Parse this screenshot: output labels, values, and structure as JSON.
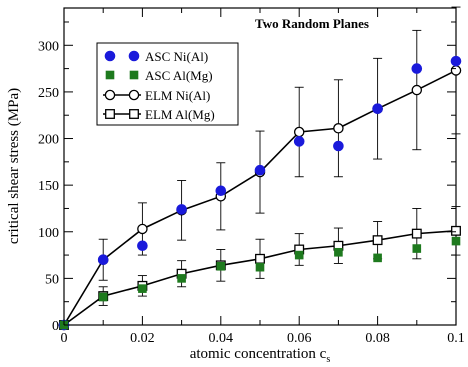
{
  "chart_data": {
    "type": "scatter",
    "title": "Two Random Planes",
    "xlabel_main": "atomic concentration c",
    "xlabel_sub": "s",
    "ylabel": "critical shear stress (MPa)",
    "xlim": [
      0,
      0.1
    ],
    "ylim": [
      0,
      340
    ],
    "x_ticks": [
      0,
      0.02,
      0.04,
      0.06,
      0.08,
      0.1
    ],
    "x_tick_labels": [
      "0",
      "0.02",
      "0.04",
      "0.06",
      "0.08",
      "0.1"
    ],
    "y_ticks": [
      0,
      50,
      100,
      150,
      200,
      250,
      300
    ],
    "y_tick_labels": [
      "0",
      "50",
      "100",
      "150",
      "200",
      "250",
      "300"
    ],
    "legend_position": "top-left",
    "series": [
      {
        "name": "ASC Ni(Al)",
        "marker": "filled-circle",
        "line": false,
        "color": "#1a1adb",
        "x": [
          0,
          0.01,
          0.02,
          0.03,
          0.04,
          0.05,
          0.06,
          0.07,
          0.08,
          0.09,
          0.1
        ],
        "y": [
          0,
          70,
          85,
          124,
          144,
          166,
          197,
          192,
          232,
          275,
          283
        ]
      },
      {
        "name": "ASC Al(Mg)",
        "marker": "filled-square",
        "line": false,
        "color": "#1e7a1e",
        "x": [
          0,
          0.01,
          0.02,
          0.03,
          0.04,
          0.05,
          0.06,
          0.07,
          0.08,
          0.09,
          0.1
        ],
        "y": [
          0,
          30,
          39,
          50,
          63,
          62,
          75,
          78,
          72,
          82,
          90
        ]
      },
      {
        "name": "ELM Ni(Al)",
        "marker": "open-circle",
        "line": true,
        "color": "#000000",
        "x": [
          0,
          0.01,
          0.02,
          0.03,
          0.04,
          0.05,
          0.06,
          0.07,
          0.08,
          0.09,
          0.1
        ],
        "y": [
          0,
          70,
          103,
          123,
          138,
          164,
          207,
          211,
          232,
          252,
          273
        ],
        "err": [
          0,
          22,
          28,
          32,
          36,
          44,
          48,
          52,
          54,
          64,
          68
        ]
      },
      {
        "name": "ELM Al(Mg)",
        "marker": "open-square",
        "line": true,
        "color": "#000000",
        "x": [
          0,
          0.01,
          0.02,
          0.03,
          0.04,
          0.05,
          0.06,
          0.07,
          0.08,
          0.09,
          0.1
        ],
        "y": [
          0,
          31,
          42,
          55,
          64,
          71,
          81,
          85,
          91,
          98,
          101
        ],
        "err": [
          0,
          10,
          11,
          14,
          17,
          21,
          17,
          19,
          20,
          27,
          26
        ]
      }
    ]
  }
}
